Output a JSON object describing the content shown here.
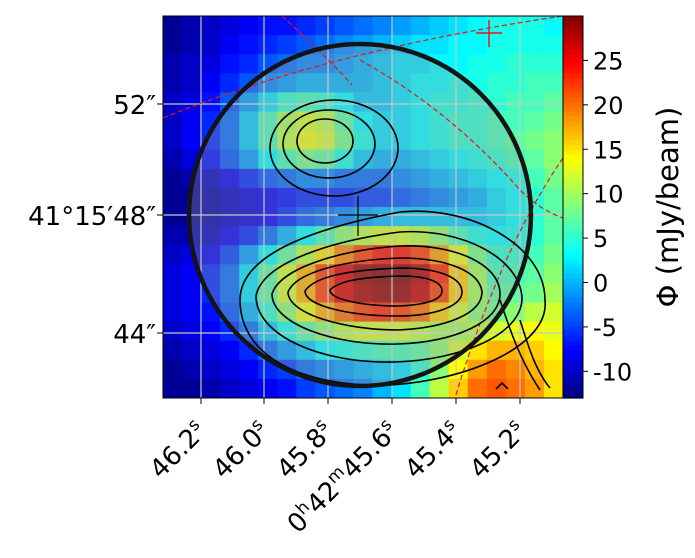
{
  "chart_data": {
    "type": "heatmap",
    "title": "",
    "xlabel": "",
    "ylabel": "",
    "x_tick_labels": [
      {
        "base": "46.2",
        "sup": "s"
      },
      {
        "base": "46.0",
        "sup": "s"
      },
      {
        "base": "45.8",
        "sup": "s"
      },
      {
        "base": "0",
        "sup": "h",
        "base2": "42",
        "sup2": "m",
        "base3": "45.6",
        "sup3": "s"
      },
      {
        "base": "45.4",
        "sup": "s"
      },
      {
        "base": "45.2",
        "sup": "s"
      }
    ],
    "y_tick_labels": [
      "52″",
      "41°15′48″",
      "44″"
    ],
    "colorbar": {
      "label": "Φ (mJy/beam)",
      "range": [
        -13,
        30
      ],
      "ticks": [
        25,
        20,
        15,
        10,
        5,
        0,
        -5,
        -10
      ],
      "colormap": "jet"
    },
    "grid": true,
    "nrows": 20,
    "ncols": 21,
    "grid_values": [
      [
        -12,
        -11,
        -10,
        -9,
        -8,
        -7,
        -7,
        -6,
        -5,
        -4,
        -3,
        -2,
        -1,
        0,
        1,
        2,
        3,
        4,
        4,
        4,
        3
      ],
      [
        -12,
        -11,
        -10,
        -8,
        -7,
        -6,
        -5,
        -4,
        -3,
        -2,
        -1,
        0,
        1,
        2,
        2,
        3,
        3,
        4,
        4,
        4,
        4
      ],
      [
        -11,
        -10,
        -9,
        -7,
        -6,
        -4,
        -3,
        -2,
        -2,
        -1,
        0,
        1,
        2,
        2,
        3,
        3,
        4,
        4,
        5,
        5,
        5
      ],
      [
        -11,
        -10,
        -8,
        -6,
        -4,
        -2,
        -1,
        0,
        0,
        0,
        0,
        1,
        2,
        3,
        3,
        4,
        4,
        5,
        5,
        6,
        6
      ],
      [
        -10,
        -9,
        -7,
        -4,
        -1,
        2,
        5,
        6,
        5,
        3,
        1,
        1,
        2,
        3,
        4,
        4,
        5,
        5,
        6,
        6,
        7
      ],
      [
        -10,
        -8,
        -6,
        -3,
        1,
        6,
        10,
        12,
        11,
        7,
        3,
        2,
        2,
        3,
        4,
        5,
        5,
        6,
        6,
        7,
        8
      ],
      [
        -10,
        -8,
        -6,
        -3,
        1,
        6,
        11,
        13,
        12,
        8,
        4,
        2,
        2,
        3,
        4,
        5,
        5,
        6,
        7,
        8,
        9
      ],
      [
        -11,
        -9,
        -7,
        -4,
        -1,
        3,
        6,
        8,
        7,
        4,
        1,
        0,
        0,
        1,
        2,
        3,
        4,
        5,
        6,
        7,
        9
      ],
      [
        -12,
        -11,
        -10,
        -8,
        -6,
        -4,
        -3,
        -2,
        -2,
        -3,
        -3,
        -3,
        -2,
        -1,
        0,
        1,
        2,
        3,
        4,
        6,
        8
      ],
      [
        -12,
        -12,
        -11,
        -10,
        -9,
        -8,
        -7,
        -6,
        -6,
        -6,
        -5,
        -5,
        -4,
        -3,
        -2,
        -1,
        0,
        2,
        3,
        5,
        7
      ],
      [
        -12,
        -12,
        -11,
        -10,
        -9,
        -8,
        -6,
        -4,
        -3,
        -2,
        -1,
        0,
        1,
        1,
        1,
        1,
        1,
        2,
        3,
        5,
        7
      ],
      [
        -11,
        -11,
        -10,
        -8,
        -6,
        -3,
        0,
        3,
        6,
        9,
        11,
        12,
        12,
        11,
        9,
        6,
        4,
        3,
        4,
        5,
        7
      ],
      [
        -10,
        -9,
        -8,
        -5,
        -1,
        3,
        7,
        11,
        15,
        19,
        22,
        24,
        24,
        22,
        18,
        13,
        8,
        5,
        5,
        6,
        8
      ],
      [
        -9,
        -8,
        -6,
        -3,
        2,
        7,
        12,
        17,
        22,
        26,
        29,
        30,
        30,
        28,
        23,
        16,
        10,
        6,
        6,
        7,
        9
      ],
      [
        -9,
        -8,
        -6,
        -3,
        2,
        7,
        12,
        17,
        22,
        26,
        28,
        29,
        29,
        27,
        22,
        16,
        10,
        7,
        7,
        8,
        10
      ],
      [
        -9,
        -8,
        -7,
        -4,
        0,
        5,
        9,
        13,
        17,
        20,
        22,
        23,
        22,
        20,
        16,
        12,
        9,
        8,
        9,
        11,
        12
      ],
      [
        -10,
        -9,
        -8,
        -6,
        -3,
        1,
        4,
        7,
        9,
        11,
        12,
        12,
        12,
        11,
        10,
        10,
        11,
        12,
        13,
        14,
        13
      ],
      [
        -11,
        -10,
        -9,
        -8,
        -6,
        -3,
        -1,
        1,
        3,
        4,
        5,
        6,
        6,
        7,
        9,
        12,
        15,
        17,
        17,
        16,
        14
      ],
      [
        -12,
        -11,
        -10,
        -9,
        -8,
        -6,
        -5,
        -3,
        -2,
        -1,
        0,
        1,
        2,
        5,
        9,
        14,
        18,
        20,
        19,
        17,
        15
      ],
      [
        -12,
        -12,
        -11,
        -10,
        -9,
        -8,
        -7,
        -5,
        -4,
        -3,
        -2,
        0,
        2,
        6,
        11,
        16,
        20,
        21,
        20,
        18,
        15
      ]
    ],
    "contours_visible": true,
    "aperture_circle": true
  }
}
